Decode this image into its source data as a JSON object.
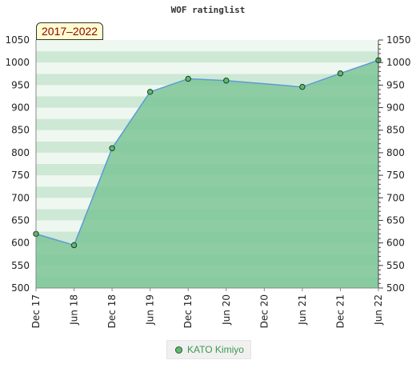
{
  "chart_data": {
    "type": "area",
    "title": "WOF ratinglist",
    "badge": "2017–2022",
    "x_ticks": [
      "Dec 17",
      "Jun 18",
      "Dec 18",
      "Jun 19",
      "Dec 19",
      "Jun 20",
      "Dec 20",
      "Jun 21",
      "Dec 21",
      "Jun 22"
    ],
    "ylim": [
      500,
      1050
    ],
    "y_ticks": [
      500,
      550,
      600,
      650,
      700,
      750,
      800,
      850,
      900,
      950,
      1000,
      1050
    ],
    "series": [
      {
        "name": "KATO Kimiyo",
        "points": [
          {
            "x": "Dec 17",
            "y": 620
          },
          {
            "x": "Jun 18",
            "y": 595
          },
          {
            "x": "Dec 18",
            "y": 810
          },
          {
            "x": "Jun 19",
            "y": 935
          },
          {
            "x": "Dec 19",
            "y": 964
          },
          {
            "x": "Jun 20",
            "y": 960
          },
          {
            "x": "Jun 21",
            "y": 946
          },
          {
            "x": "Dec 21",
            "y": 976
          },
          {
            "x": "Jun 22",
            "y": 1005
          }
        ]
      }
    ],
    "grid": true,
    "legend": "bottom-center",
    "colors": {
      "area": "#7cc597",
      "line": "#5b9bd5",
      "marker": "#5cbb71",
      "band_light": "#eef7f0",
      "band_dark": "#cde8d5"
    }
  }
}
